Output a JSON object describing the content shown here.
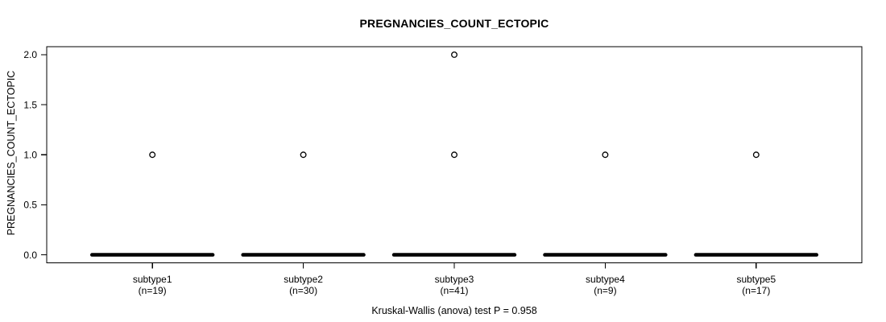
{
  "figure": {
    "background": "#ffffff"
  },
  "chart_data": {
    "type": "boxplot",
    "title": "PREGNANCIES_COUNT_ECTOPIC",
    "ylabel": "PREGNANCIES_COUNT_ECTOPIC",
    "xlabel": "",
    "caption": "Kruskal-Wallis (anova) test P = 0.958",
    "ylim": [
      0,
      2
    ],
    "yticks": [
      0,
      0.5,
      1,
      1.5,
      2
    ],
    "ytick_labels": [
      "0.0",
      "0.5",
      "1.0",
      "1.5",
      "2.0"
    ],
    "grid": false,
    "legend": false,
    "line_color": "#000000",
    "categories": [
      "subtype1",
      "subtype2",
      "subtype3",
      "subtype4",
      "subtype5"
    ],
    "group_sublabels": [
      "(n=19)",
      "(n=30)",
      "(n=41)",
      "(n=9)",
      "(n=17)"
    ],
    "groups": [
      {
        "label": "subtype1",
        "sublabel": "(n=19)",
        "n": 19,
        "median": 0,
        "q1": 0,
        "q3": 0,
        "whisker_low": 0,
        "whisker_high": 0,
        "outliers": [
          1
        ]
      },
      {
        "label": "subtype2",
        "sublabel": "(n=30)",
        "n": 30,
        "median": 0,
        "q1": 0,
        "q3": 0,
        "whisker_low": 0,
        "whisker_high": 0,
        "outliers": [
          1
        ]
      },
      {
        "label": "subtype3",
        "sublabel": "(n=41)",
        "n": 41,
        "median": 0,
        "q1": 0,
        "q3": 0,
        "whisker_low": 0,
        "whisker_high": 0,
        "outliers": [
          1,
          2
        ]
      },
      {
        "label": "subtype4",
        "sublabel": "(n=9)",
        "n": 9,
        "median": 0,
        "q1": 0,
        "q3": 0,
        "whisker_low": 0,
        "whisker_high": 0,
        "outliers": [
          1
        ]
      },
      {
        "label": "subtype5",
        "sublabel": "(n=17)",
        "n": 17,
        "median": 0,
        "q1": 0,
        "q3": 0,
        "whisker_low": 0,
        "whisker_high": 0,
        "outliers": [
          1
        ]
      }
    ]
  }
}
